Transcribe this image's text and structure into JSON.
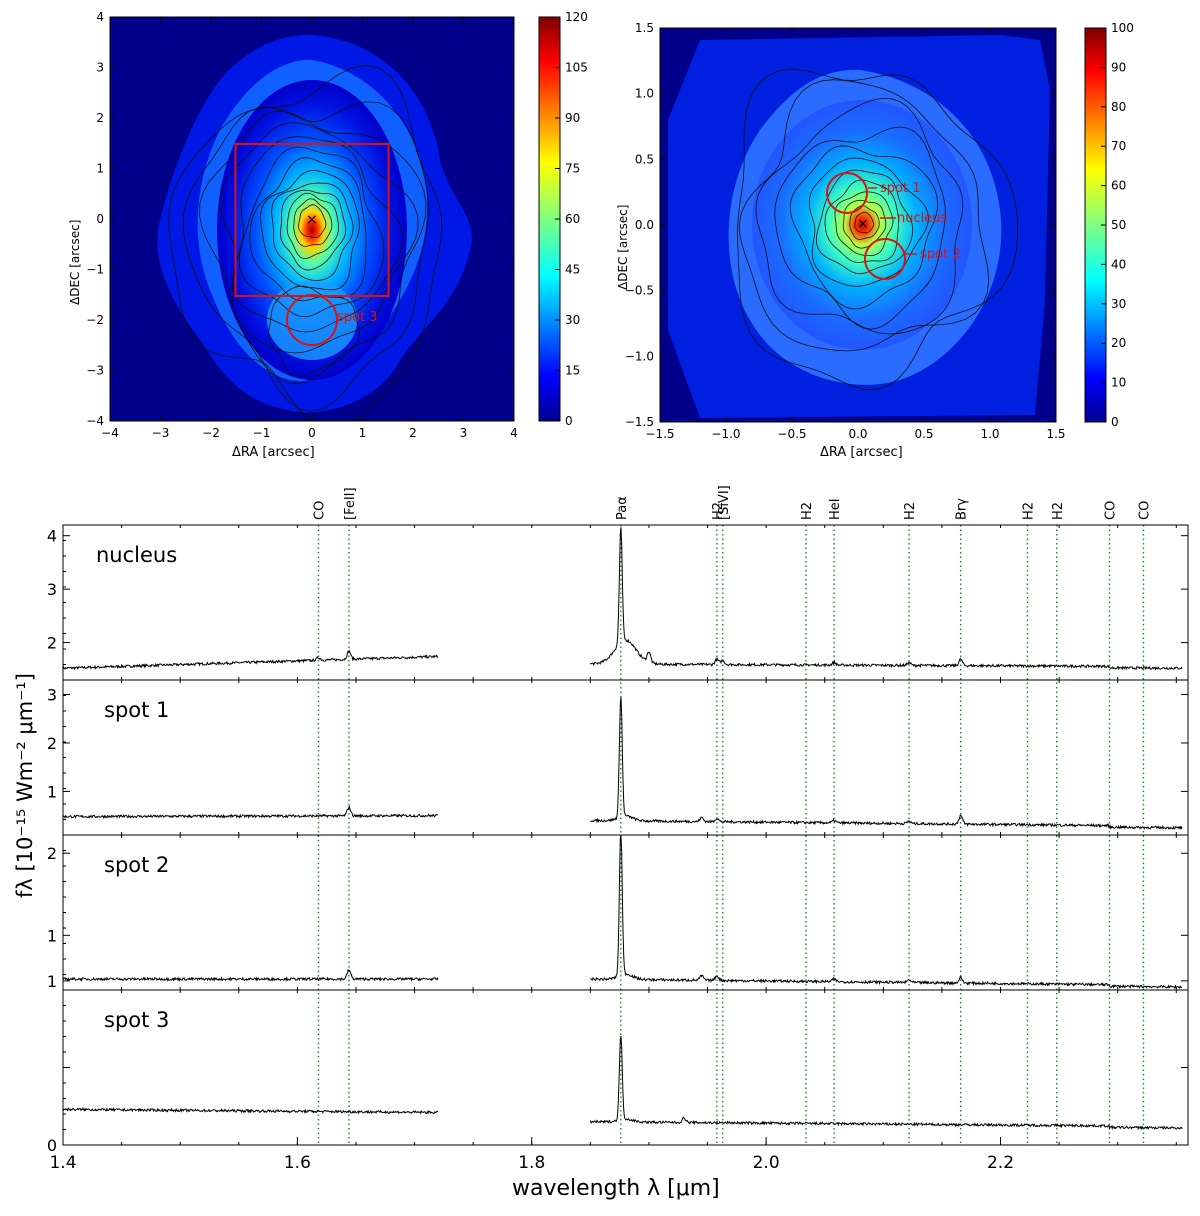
{
  "chart_data": [
    {
      "type": "heatmap",
      "title": "",
      "xlabel": "ΔRA [arcsec]",
      "ylabel": "ΔDEC [arcsec]",
      "xlim": [
        -4,
        4
      ],
      "ylim": [
        -4,
        4
      ],
      "xticks": [
        "−4",
        "−3",
        "−2",
        "−1",
        "0",
        "1",
        "2",
        "3",
        "4"
      ],
      "yticks": [
        "−4",
        "−3",
        "−2",
        "−1",
        "0",
        "1",
        "2",
        "3",
        "4"
      ],
      "colorbar": {
        "min": 0,
        "max": 120,
        "ticks": [
          "0",
          "15",
          "30",
          "45",
          "60",
          "75",
          "90",
          "105",
          "120"
        ]
      },
      "annotations": [
        {
          "label": "spot 3",
          "center": [
            0,
            -2.05
          ],
          "radius_arcsec": 0.5
        }
      ],
      "box": {
        "x": [
          -1.5,
          1.5
        ],
        "y": [
          -1.5,
          1.5
        ]
      },
      "nucleus_marker": [
        0,
        0
      ]
    },
    {
      "type": "heatmap",
      "title": "",
      "xlabel": "ΔRA [arcsec]",
      "ylabel": "ΔDEC [arcsec]",
      "xlim": [
        -1.5,
        1.5
      ],
      "ylim": [
        -1.5,
        1.5
      ],
      "xticks": [
        "−1.5",
        "−1.0",
        "−0.5",
        "0.0",
        "0.5",
        "1.0",
        "1.5"
      ],
      "yticks": [
        "−1.5",
        "−1.0",
        "−0.5",
        "0.0",
        "0.5",
        "1.0",
        "1.5"
      ],
      "colorbar": {
        "min": 0,
        "max": 100,
        "ticks": [
          "0",
          "10",
          "20",
          "30",
          "40",
          "50",
          "60",
          "70",
          "80",
          "90",
          "100"
        ]
      },
      "annotations": [
        {
          "label": "spot 1",
          "center": [
            -0.15,
            0.22
          ],
          "radius_arcsec": 0.15
        },
        {
          "label": "nucleus",
          "center": [
            0,
            0
          ],
          "radius_arcsec": 0
        },
        {
          "label": "spot 2",
          "center": [
            0.17,
            -0.28
          ],
          "radius_arcsec": 0.15
        }
      ],
      "nucleus_marker": [
        0,
        0
      ]
    },
    {
      "type": "line",
      "xlabel": "wavelength λ [μm]",
      "ylabel": "fλ [10⁻¹⁵ Wm⁻² μm⁻¹]",
      "xlim": [
        1.4,
        2.36
      ],
      "xticks": [
        "1.4",
        "1.6",
        "1.8",
        "2.0",
        "2.2"
      ],
      "line_ids": [
        {
          "label": "CO",
          "x": 1.618
        },
        {
          "label": "[FeII]",
          "x": 1.644
        },
        {
          "label": "Paα",
          "x": 1.876
        },
        {
          "label": "H2",
          "x": 1.958
        },
        {
          "label": "[SiVI]",
          "x": 1.963
        },
        {
          "label": "H2",
          "x": 2.034
        },
        {
          "label": "HeI",
          "x": 2.058
        },
        {
          "label": "H2",
          "x": 2.122
        },
        {
          "label": "Brγ",
          "x": 2.166
        },
        {
          "label": "H2",
          "x": 2.223
        },
        {
          "label": "H2",
          "x": 2.248
        },
        {
          "label": "CO",
          "x": 2.293
        },
        {
          "label": "CO",
          "x": 2.322
        }
      ],
      "panels": [
        {
          "name": "nucleus",
          "ylim": [
            1.3,
            4.2
          ],
          "yticks": [
            "2",
            "3",
            "4"
          ],
          "ytick_values": [
            2,
            3,
            4
          ],
          "continuum_H": [
            1.52,
            1.74
          ],
          "continuum_K": [
            1.6,
            1.55
          ],
          "lines": [
            {
              "x": 1.618,
              "h": 0.05
            },
            {
              "x": 1.644,
              "h": 0.15
            },
            {
              "x": 1.876,
              "h": 2.15
            },
            {
              "x": 1.9,
              "h": 0.2
            },
            {
              "x": 1.958,
              "h": 0.1
            },
            {
              "x": 1.963,
              "h": 0.08
            },
            {
              "x": 2.058,
              "h": 0.05
            },
            {
              "x": 2.122,
              "h": 0.05
            },
            {
              "x": 2.166,
              "h": 0.12
            }
          ],
          "broad": {
            "x": 1.876,
            "h": 0.45,
            "w": 0.009
          }
        },
        {
          "name": "spot 1",
          "ylim": [
            0.1,
            3.3
          ],
          "yticks": [
            "1",
            "2",
            "3"
          ],
          "ytick_values": [
            1,
            2,
            3
          ],
          "continuum_H": [
            0.48,
            0.5
          ],
          "continuum_K": [
            0.4,
            0.28
          ],
          "lines": [
            {
              "x": 1.644,
              "h": 0.18
            },
            {
              "x": 1.876,
              "h": 2.5
            },
            {
              "x": 1.945,
              "h": 0.08
            },
            {
              "x": 1.958,
              "h": 0.07
            },
            {
              "x": 2.058,
              "h": 0.05
            },
            {
              "x": 2.122,
              "h": 0.05
            },
            {
              "x": 2.166,
              "h": 0.18
            }
          ],
          "broad": {
            "x": 1.876,
            "h": 0.1,
            "w": 0.006
          }
        },
        {
          "name": "spot 2",
          "ylim": [
            0.5,
            2.2
          ],
          "yticks": [
            "1",
            "1",
            "2"
          ],
          "ytick_values": [
            0.6,
            1.1,
            2.0
          ],
          "continuum_H": [
            0.62,
            0.62
          ],
          "continuum_K": [
            0.62,
            0.55
          ],
          "lines": [
            {
              "x": 1.644,
              "h": 0.1
            },
            {
              "x": 1.876,
              "h": 1.6
            },
            {
              "x": 1.945,
              "h": 0.05
            },
            {
              "x": 1.958,
              "h": 0.05
            },
            {
              "x": 2.058,
              "h": 0.03
            },
            {
              "x": 2.122,
              "h": 0.03
            },
            {
              "x": 2.166,
              "h": 0.06
            }
          ],
          "broad": {
            "x": 1.876,
            "h": 0.06,
            "w": 0.006
          }
        },
        {
          "name": "spot 3",
          "ylim": [
            0.0,
            1.0
          ],
          "yticks": [
            "0",
            "",
            ""
          ],
          "ytick_values": [
            0.0,
            0.5,
            1.0
          ],
          "continuum_H": [
            0.23,
            0.21
          ],
          "continuum_K": [
            0.15,
            0.12
          ],
          "lines": [
            {
              "x": 1.876,
              "h": 0.55
            },
            {
              "x": 1.93,
              "h": 0.03
            }
          ],
          "broad": {
            "x": 1.876,
            "h": 0.02,
            "w": 0.006
          }
        }
      ],
      "gap": [
        1.72,
        1.85
      ]
    }
  ]
}
